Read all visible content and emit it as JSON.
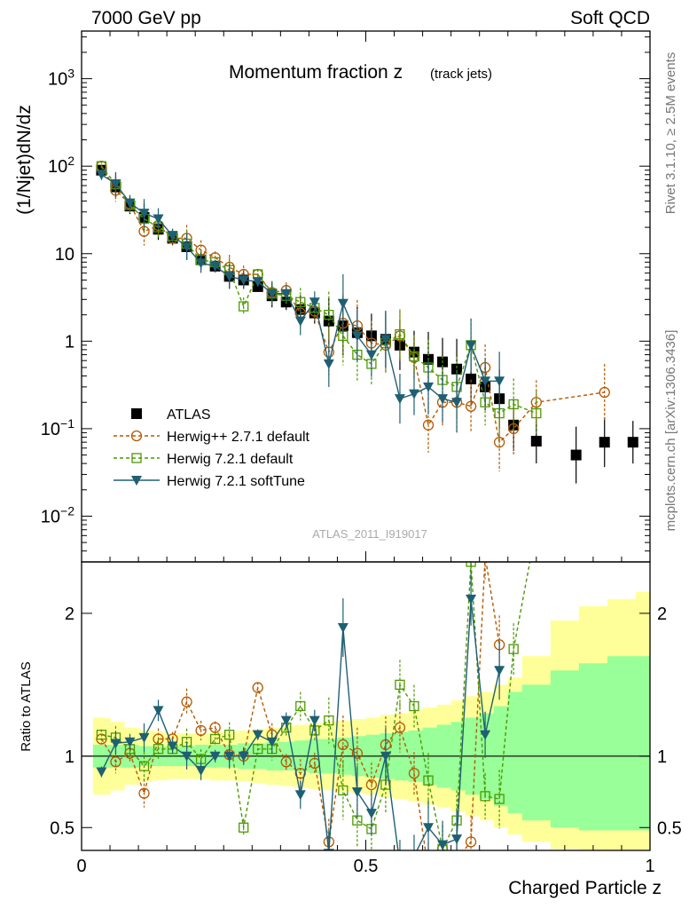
{
  "header": {
    "left": "7000 GeV pp",
    "right": "Soft QCD"
  },
  "side_labels": {
    "rivet": "Rivet 3.1.10, ≥ 2.5M events",
    "mcplots": "mcplots.cern.ch [arXiv:1306.3436]"
  },
  "watermark": "ATLAS_2011_I919017",
  "chart_data": [
    {
      "panel": "main",
      "type": "scatter",
      "title": "Momentum fraction z",
      "title_sub": "(track jets)",
      "ylabel": "(1/Njet)dN/dz",
      "yscale": "log",
      "ylim": [
        0.003,
        3500
      ],
      "xlim": [
        0,
        1
      ],
      "y_ticks": [
        "10^-2",
        "10^-1",
        "1",
        "10",
        "10^2",
        "10^3"
      ],
      "legend_position": "lower-left",
      "series": [
        {
          "name": "ATLAS",
          "color": "#000000",
          "marker": "square-filled",
          "x": [
            0.035,
            0.06,
            0.085,
            0.11,
            0.135,
            0.16,
            0.185,
            0.21,
            0.235,
            0.26,
            0.285,
            0.31,
            0.335,
            0.36,
            0.385,
            0.41,
            0.435,
            0.46,
            0.485,
            0.51,
            0.535,
            0.56,
            0.585,
            0.61,
            0.635,
            0.66,
            0.685,
            0.71,
            0.735,
            0.76,
            0.8,
            0.87,
            0.92,
            0.97
          ],
          "y": [
            90,
            58,
            35,
            26,
            19,
            15,
            12,
            8.5,
            7.2,
            5.5,
            5.0,
            4.2,
            3.3,
            2.8,
            2.3,
            2.1,
            1.7,
            1.5,
            1.25,
            1.15,
            1.05,
            0.9,
            0.75,
            0.62,
            0.58,
            0.48,
            0.37,
            0.3,
            0.22,
            0.11,
            0.072,
            0.05,
            0.07,
            0.07
          ]
        },
        {
          "name": "Herwig++ 2.7.1 default",
          "color": "#b35900",
          "marker": "circle-open",
          "line": "dashed",
          "x": [
            0.035,
            0.06,
            0.085,
            0.11,
            0.135,
            0.16,
            0.185,
            0.21,
            0.235,
            0.26,
            0.285,
            0.31,
            0.335,
            0.36,
            0.385,
            0.41,
            0.435,
            0.46,
            0.485,
            0.51,
            0.535,
            0.56,
            0.585,
            0.61,
            0.635,
            0.66,
            0.685,
            0.71,
            0.735,
            0.76,
            0.8,
            0.92
          ],
          "y": [
            100,
            53,
            37,
            18,
            21,
            15,
            15,
            11,
            9,
            7,
            5.8,
            5.8,
            3.6,
            3.8,
            2.1,
            2.2,
            0.75,
            1.6,
            1.5,
            0.95,
            0.9,
            1.15,
            0.65,
            0.11,
            0.2,
            0.2,
            0.18,
            0.5,
            0.07,
            0.1,
            0.2,
            0.26
          ]
        },
        {
          "name": "Herwig 7.2.1 default",
          "color": "#4c9900",
          "marker": "square-open",
          "line": "dashed",
          "x": [
            0.035,
            0.06,
            0.085,
            0.11,
            0.135,
            0.16,
            0.185,
            0.21,
            0.235,
            0.26,
            0.285,
            0.31,
            0.335,
            0.36,
            0.385,
            0.41,
            0.435,
            0.46,
            0.485,
            0.51,
            0.535,
            0.56,
            0.585,
            0.61,
            0.635,
            0.66,
            0.685,
            0.71,
            0.735,
            0.76,
            0.8
          ],
          "y": [
            100,
            62,
            36,
            25,
            20,
            16,
            13,
            8.5,
            8,
            6.5,
            2.5,
            5.8,
            3.5,
            3.3,
            2.8,
            2.4,
            2.0,
            1.15,
            0.7,
            0.55,
            0.95,
            1.2,
            0.67,
            0.5,
            0.36,
            0.3,
            0.9,
            0.2,
            0.15,
            0.19,
            0.15
          ]
        },
        {
          "name": "Herwig 7.2.1 softTune",
          "color": "#1f5f73",
          "marker": "triangle-down-filled",
          "line": "solid",
          "x": [
            0.035,
            0.06,
            0.085,
            0.11,
            0.135,
            0.16,
            0.185,
            0.21,
            0.235,
            0.26,
            0.285,
            0.31,
            0.335,
            0.36,
            0.385,
            0.41,
            0.435,
            0.46,
            0.485,
            0.51,
            0.535,
            0.56,
            0.585,
            0.61,
            0.635,
            0.66,
            0.685,
            0.71,
            0.735
          ],
          "y": [
            80,
            63,
            38,
            29,
            25,
            16,
            12,
            7.8,
            7.2,
            5.5,
            5.0,
            4.8,
            3.5,
            3.5,
            1.7,
            2.8,
            0.55,
            2.7,
            1.15,
            0.7,
            1.05,
            0.22,
            0.25,
            0.3,
            0.22,
            0.2,
            0.9,
            0.35,
            0.35
          ]
        }
      ]
    },
    {
      "panel": "ratio",
      "type": "line",
      "ylabel": "Ratio to ATLAS",
      "xlabel": "Charged Particle z",
      "xlim": [
        0,
        1
      ],
      "ylim": [
        0.34,
        2.36
      ],
      "x_ticks": [
        "0",
        "0.5",
        "1"
      ],
      "y_ticks": [
        "0.5",
        "1",
        "2"
      ],
      "band_edges": [
        0.02,
        0.05,
        0.075,
        0.1,
        0.125,
        0.15,
        0.175,
        0.2,
        0.225,
        0.25,
        0.275,
        0.3,
        0.325,
        0.35,
        0.375,
        0.4,
        0.425,
        0.45,
        0.475,
        0.5,
        0.525,
        0.55,
        0.575,
        0.6,
        0.625,
        0.65,
        0.675,
        0.7,
        0.725,
        0.75,
        0.775,
        0.825,
        0.875,
        0.925,
        0.975,
        1.0
      ],
      "stat_band": [
        [
          0.92,
          1.08
        ],
        [
          0.92,
          1.08
        ],
        [
          0.92,
          1.08
        ],
        [
          0.93,
          1.07
        ],
        [
          0.93,
          1.07
        ],
        [
          0.93,
          1.07
        ],
        [
          0.93,
          1.07
        ],
        [
          0.92,
          1.08
        ],
        [
          0.92,
          1.08
        ],
        [
          0.92,
          1.08
        ],
        [
          0.91,
          1.09
        ],
        [
          0.91,
          1.09
        ],
        [
          0.9,
          1.1
        ],
        [
          0.9,
          1.1
        ],
        [
          0.89,
          1.11
        ],
        [
          0.88,
          1.12
        ],
        [
          0.88,
          1.12
        ],
        [
          0.87,
          1.13
        ],
        [
          0.86,
          1.14
        ],
        [
          0.85,
          1.15
        ],
        [
          0.84,
          1.16
        ],
        [
          0.83,
          1.17
        ],
        [
          0.82,
          1.18
        ],
        [
          0.8,
          1.2
        ],
        [
          0.78,
          1.22
        ],
        [
          0.76,
          1.24
        ],
        [
          0.73,
          1.27
        ],
        [
          0.7,
          1.3
        ],
        [
          0.65,
          1.35
        ],
        [
          0.6,
          1.45
        ],
        [
          0.55,
          1.5
        ],
        [
          0.5,
          1.6
        ],
        [
          0.48,
          1.65
        ],
        [
          0.48,
          1.7
        ],
        [
          0.48,
          1.7
        ]
      ],
      "tot_band": [
        [
          0.73,
          1.27
        ],
        [
          0.76,
          1.24
        ],
        [
          0.8,
          1.2
        ],
        [
          0.82,
          1.18
        ],
        [
          0.83,
          1.17
        ],
        [
          0.84,
          1.16
        ],
        [
          0.84,
          1.16
        ],
        [
          0.84,
          1.16
        ],
        [
          0.83,
          1.17
        ],
        [
          0.83,
          1.17
        ],
        [
          0.82,
          1.18
        ],
        [
          0.81,
          1.19
        ],
        [
          0.8,
          1.2
        ],
        [
          0.79,
          1.21
        ],
        [
          0.78,
          1.22
        ],
        [
          0.77,
          1.23
        ],
        [
          0.76,
          1.24
        ],
        [
          0.75,
          1.25
        ],
        [
          0.74,
          1.26
        ],
        [
          0.73,
          1.27
        ],
        [
          0.71,
          1.29
        ],
        [
          0.7,
          1.3
        ],
        [
          0.68,
          1.32
        ],
        [
          0.66,
          1.34
        ],
        [
          0.64,
          1.36
        ],
        [
          0.61,
          1.39
        ],
        [
          0.58,
          1.42
        ],
        [
          0.55,
          1.45
        ],
        [
          0.5,
          1.5
        ],
        [
          0.45,
          1.55
        ],
        [
          0.4,
          1.7
        ],
        [
          0.35,
          1.95
        ],
        [
          0.3,
          2.05
        ],
        [
          0.3,
          2.1
        ],
        [
          0.3,
          2.15
        ]
      ],
      "series": [
        {
          "name": "Herwig++ 2.7.1 default",
          "color": "#b35900",
          "marker": "circle-open",
          "line": "dashed",
          "x": [
            0.035,
            0.06,
            0.085,
            0.11,
            0.135,
            0.16,
            0.185,
            0.21,
            0.235,
            0.26,
            0.285,
            0.31,
            0.335,
            0.36,
            0.385,
            0.41,
            0.435,
            0.46,
            0.485,
            0.51,
            0.535,
            0.56,
            0.585,
            0.61,
            0.635,
            0.66,
            0.685,
            0.71,
            0.735
          ],
          "y": [
            1.12,
            0.96,
            1.02,
            0.74,
            1.12,
            1.12,
            1.38,
            1.18,
            1.2,
            1.01,
            1.0,
            1.48,
            1.15,
            0.96,
            0.88,
            0.95,
            0.4,
            1.08,
            1.02,
            0.8,
            1.08,
            1.2,
            0.88,
            0.2,
            0.35,
            0.28,
            0.4,
            2.4,
            1.78
          ]
        },
        {
          "name": "Herwig 7.2.1 default",
          "color": "#4c9900",
          "marker": "square-open",
          "line": "dashed",
          "x": [
            0.035,
            0.06,
            0.085,
            0.11,
            0.135,
            0.16,
            0.185,
            0.21,
            0.235,
            0.26,
            0.285,
            0.31,
            0.335,
            0.36,
            0.385,
            0.41,
            0.435,
            0.46,
            0.485,
            0.51,
            0.535,
            0.56,
            0.585,
            0.61,
            0.635,
            0.66,
            0.685,
            0.71,
            0.735,
            0.76,
            0.8
          ],
          "y": [
            1.15,
            1.13,
            1.05,
            0.93,
            1.05,
            1.05,
            1.1,
            0.98,
            1.12,
            1.15,
            0.5,
            1.05,
            1.05,
            1.2,
            1.35,
            1.18,
            1.25,
            0.76,
            0.55,
            0.49,
            0.8,
            1.5,
            1.35,
            0.83,
            0.35,
            0.55,
            2.36,
            0.72,
            0.7,
            1.75,
            2.6
          ]
        },
        {
          "name": "Herwig 7.2.1 softTune",
          "color": "#1f5f73",
          "marker": "triangle-down-filled",
          "line": "solid",
          "x": [
            0.035,
            0.06,
            0.085,
            0.11,
            0.135,
            0.16,
            0.185,
            0.21,
            0.235,
            0.26,
            0.285,
            0.31,
            0.335,
            0.36,
            0.385,
            0.41,
            0.435,
            0.46,
            0.485,
            0.51,
            0.535,
            0.56,
            0.585,
            0.61,
            0.635,
            0.66,
            0.685,
            0.71,
            0.735
          ],
          "y": [
            0.89,
            1.09,
            1.1,
            1.13,
            1.32,
            1.07,
            1.0,
            0.9,
            1.0,
            1.0,
            1.0,
            1.15,
            1.1,
            1.25,
            0.73,
            1.25,
            0.32,
            1.9,
            0.75,
            0.6,
            1.0,
            0.24,
            0.3,
            0.5,
            0.38,
            0.42,
            2.1,
            1.15,
            1.6
          ]
        }
      ]
    }
  ]
}
